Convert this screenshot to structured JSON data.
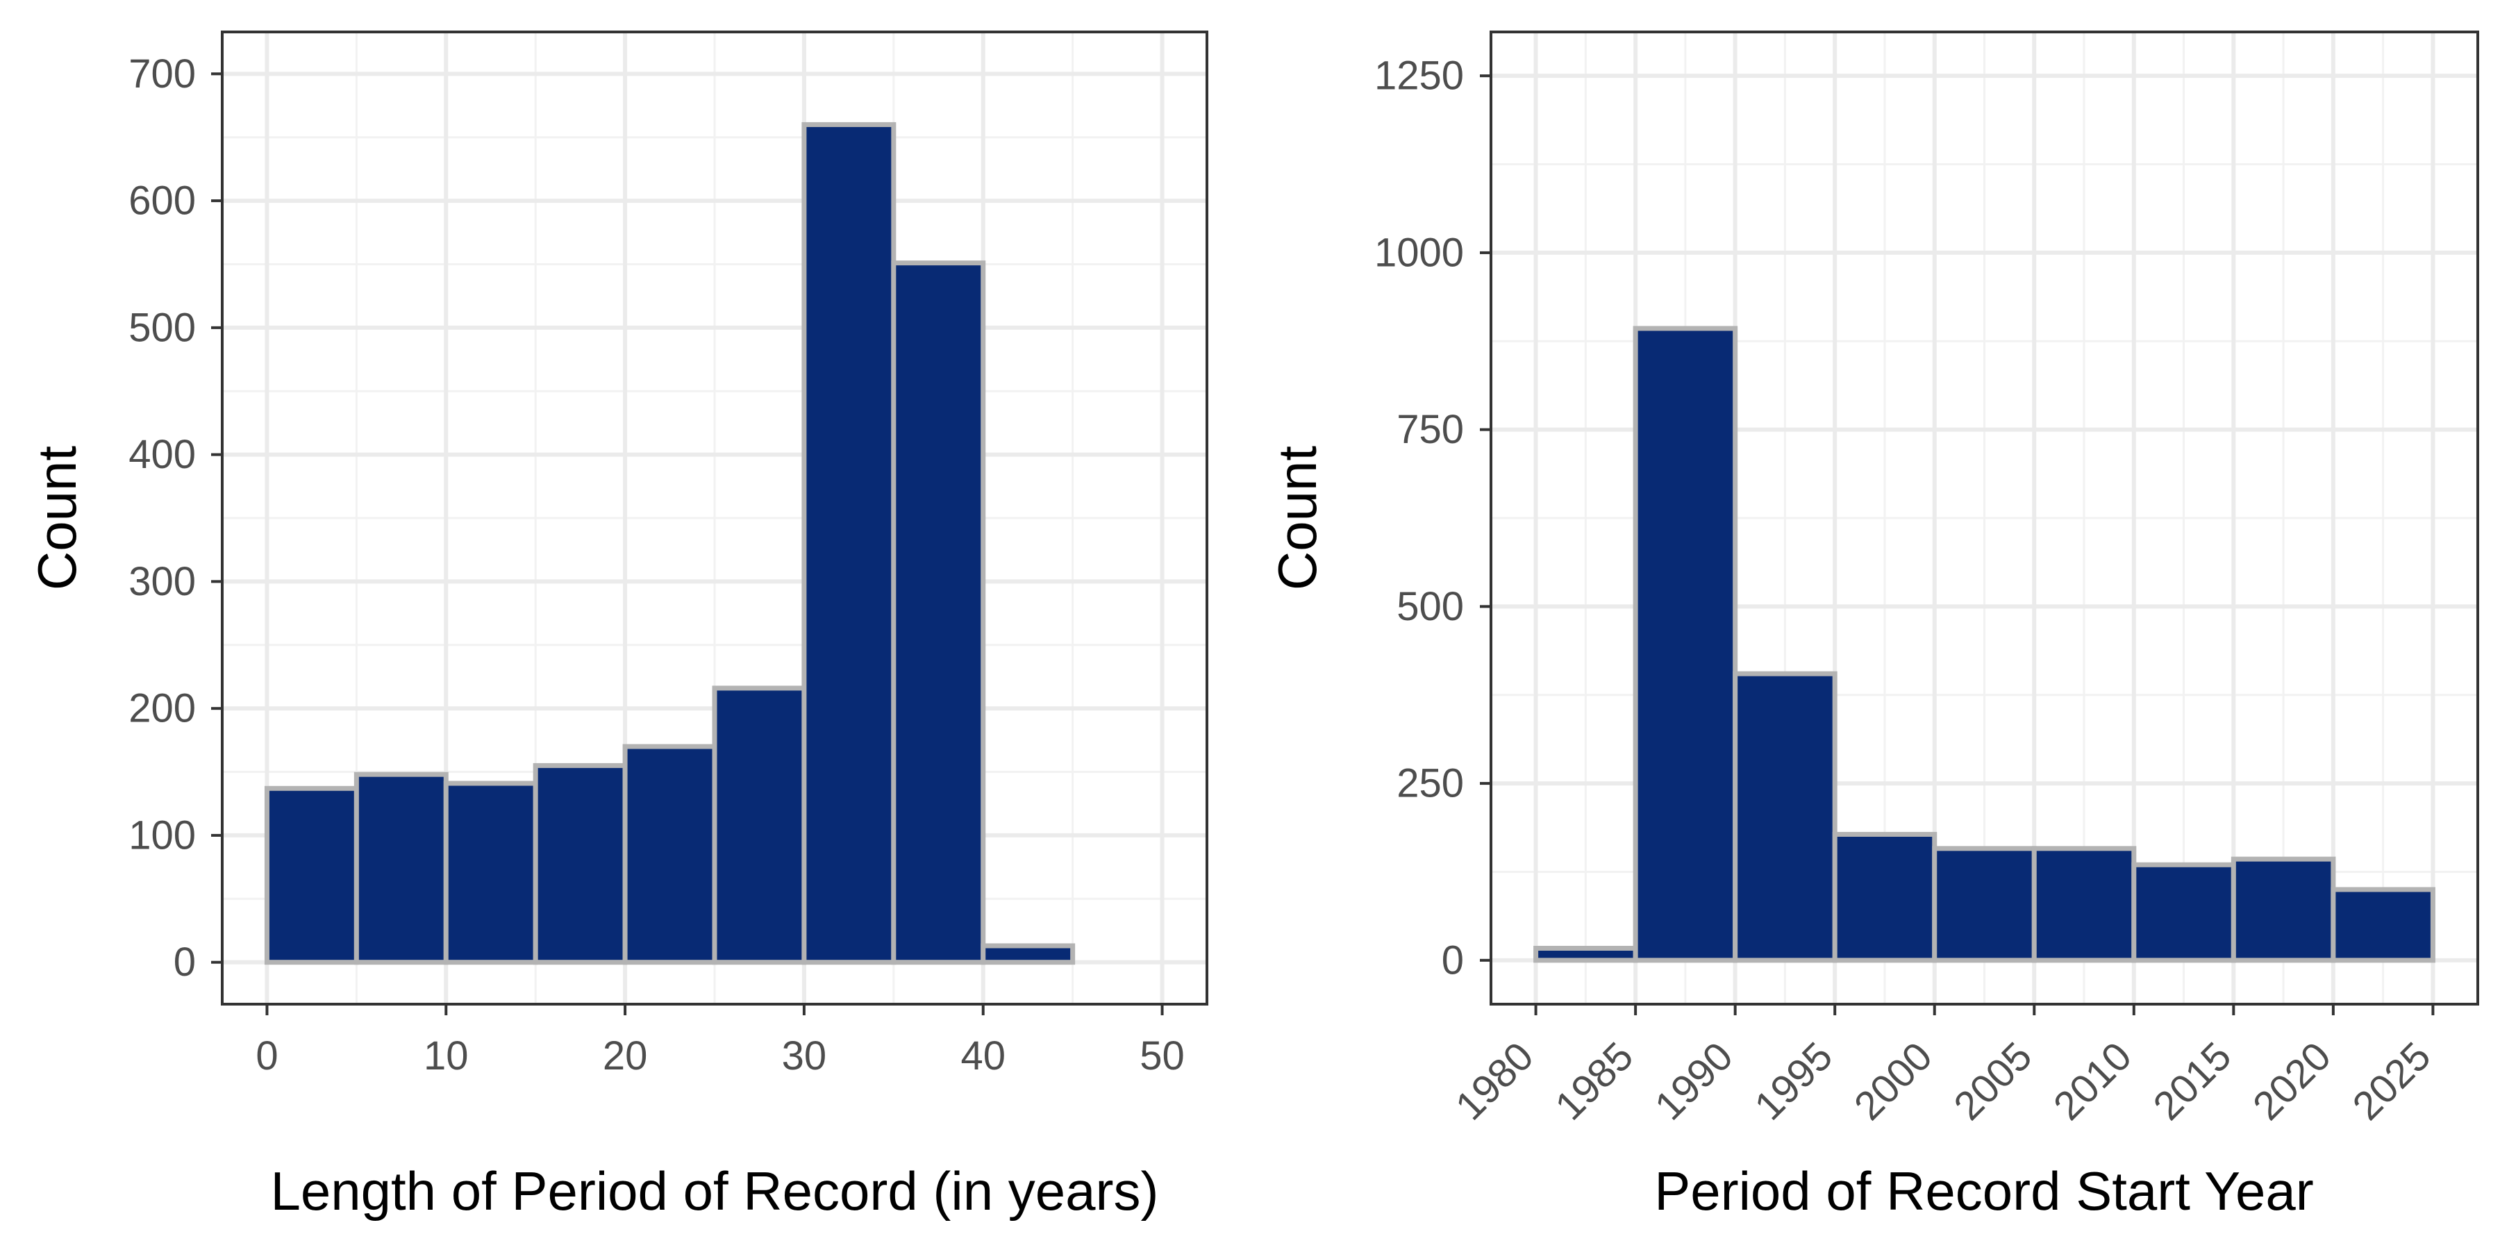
{
  "colors": {
    "bar_fill": "#082A74",
    "bar_stroke": "#B3B3B3",
    "grid_major": "#EBEBEB",
    "grid_minor": "#F2F2F2",
    "panel_border": "#333333",
    "tick_text": "#4D4D4D",
    "title_text": "#000000"
  },
  "chart_data": [
    {
      "type": "bar",
      "xlabel": "Length of Period of Record (in years)",
      "ylabel": "Count",
      "xlim": [
        -2.5,
        52.5
      ],
      "ylim": [
        -33,
        733
      ],
      "xticks": [
        0,
        10,
        20,
        30,
        40,
        50
      ],
      "xtick_labels": [
        "0",
        "10",
        "20",
        "30",
        "40",
        "50"
      ],
      "yticks": [
        0,
        100,
        200,
        300,
        400,
        500,
        600,
        700
      ],
      "ytick_labels": [
        "0",
        "100",
        "200",
        "300",
        "400",
        "500",
        "600",
        "700"
      ],
      "bin_edges": [
        0,
        5,
        10,
        15,
        20,
        25,
        30,
        35,
        40,
        45,
        50
      ],
      "values": [
        137,
        148,
        141,
        155,
        170,
        216,
        660,
        551,
        13,
        0
      ],
      "grid": true
    },
    {
      "type": "bar",
      "xlabel": "Period of Record Start Year",
      "ylabel": "Count",
      "xlim": [
        1977.75,
        2027.25
      ],
      "ylim": [
        -62,
        1312
      ],
      "xticks": [
        1980,
        1985,
        1990,
        1995,
        2000,
        2005,
        2010,
        2015,
        2020,
        2025
      ],
      "xtick_labels": [
        "1980",
        "1985",
        "1990",
        "1995",
        "2000",
        "2005",
        "2010",
        "2015",
        "2020",
        "2025"
      ],
      "xtick_rotation": -45,
      "yticks": [
        0,
        250,
        500,
        750,
        1000,
        1250
      ],
      "ytick_labels": [
        "0",
        "250",
        "500",
        "750",
        "1000",
        "1250"
      ],
      "bin_edges": [
        1980,
        1985,
        1990,
        1995,
        2000,
        2005,
        2010,
        2015,
        2020,
        2025
      ],
      "values": [
        17,
        893,
        405,
        178,
        158,
        158,
        135,
        143,
        100
      ],
      "grid": true
    }
  ]
}
